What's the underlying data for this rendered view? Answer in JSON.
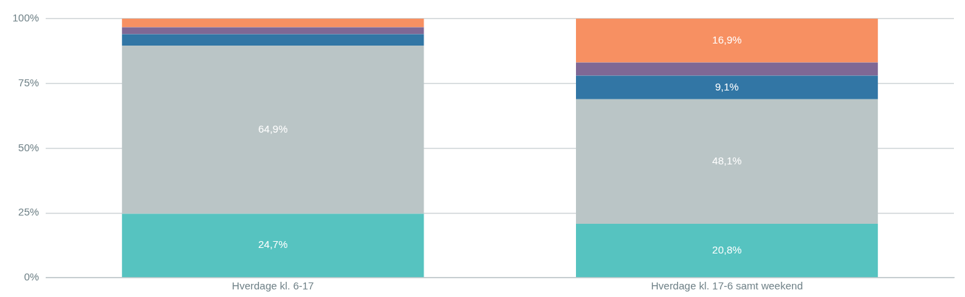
{
  "chart_data": {
    "type": "bar",
    "stacked": true,
    "categories": [
      "Hverdage kl. 6-17",
      "Hverdage kl. 17-6 samt weekend"
    ],
    "series": [
      {
        "color": "#56c3c0",
        "values": [
          24.7,
          20.8
        ],
        "value_labels": [
          "24,7%",
          "20,8%"
        ]
      },
      {
        "color": "#bac5c6",
        "values": [
          64.9,
          48.1
        ],
        "value_labels": [
          "64,9%",
          "48,1%"
        ]
      },
      {
        "color": "#3276a5",
        "values": [
          4.4,
          9.1
        ],
        "value_labels": [
          null,
          "9,1%"
        ]
      },
      {
        "color": "#7f6895",
        "values": [
          2.7,
          5.1
        ],
        "value_labels": [
          null,
          null
        ]
      },
      {
        "color": "#f79062",
        "values": [
          3.3,
          16.9
        ],
        "value_labels": [
          null,
          "16,9%"
        ]
      }
    ],
    "ylim": [
      0,
      100
    ],
    "yticks": [
      {
        "value": 0,
        "label": "0%"
      },
      {
        "value": 25,
        "label": "25%"
      },
      {
        "value": 50,
        "label": "50%"
      },
      {
        "value": 75,
        "label": "75%"
      },
      {
        "value": 100,
        "label": "100%"
      }
    ],
    "grid": "y",
    "legend": false
  }
}
